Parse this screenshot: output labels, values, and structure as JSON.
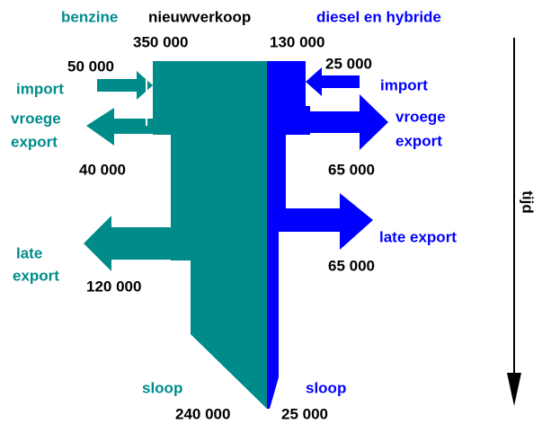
{
  "header": {
    "left": "benzine",
    "center": "nieuwverkoop",
    "right": "diesel en hybride"
  },
  "benzine": {
    "new_sales": "350 000",
    "import": {
      "label": "import",
      "amount": "50 000"
    },
    "early_export": {
      "label": [
        "vroege",
        "export"
      ],
      "amount": "40 000"
    },
    "late_export": {
      "label": [
        "late",
        "export"
      ],
      "amount": "120 000"
    },
    "scrap": {
      "label": "sloop",
      "amount": "240 000"
    }
  },
  "diesel": {
    "new_sales": "130 000",
    "import": {
      "label": "import",
      "amount": "25 000"
    },
    "early_export": {
      "label": [
        "vroege",
        "export"
      ],
      "amount": "65 000"
    },
    "late_export": {
      "label": "late export",
      "amount": "65 000"
    },
    "scrap": {
      "label": "sloop",
      "amount": "25 000"
    }
  },
  "time_axis": {
    "label": "tijd"
  }
}
